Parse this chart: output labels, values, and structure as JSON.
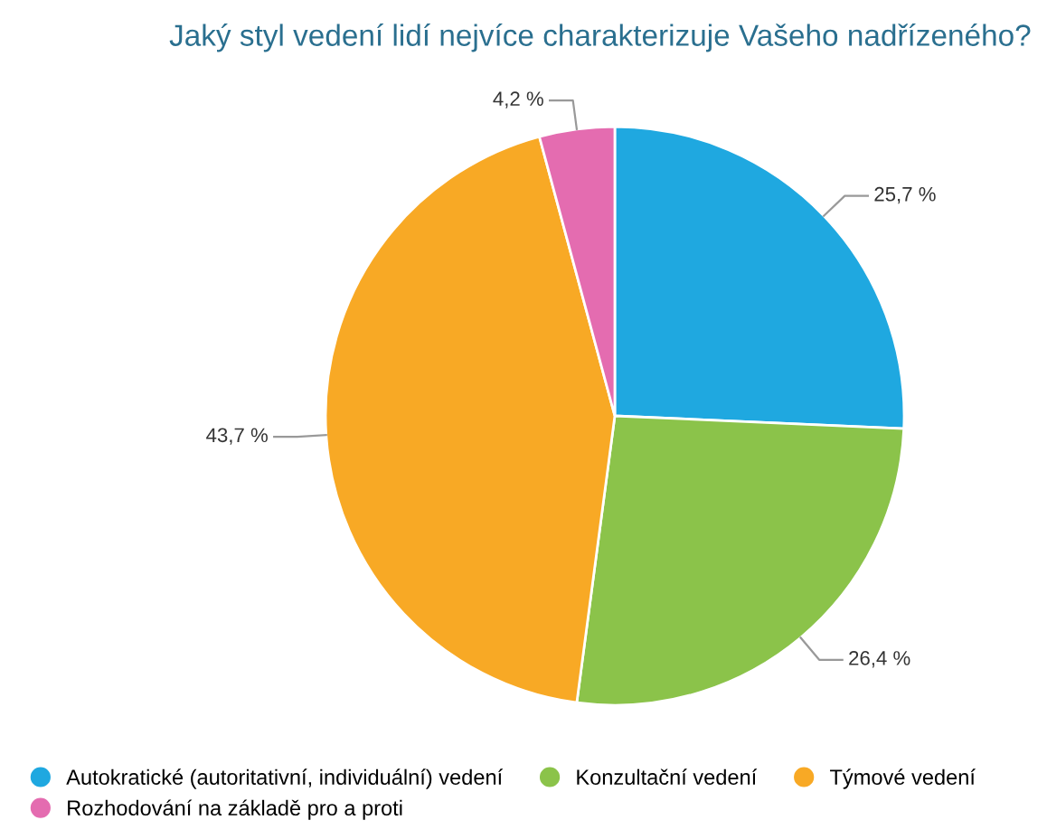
{
  "chart_data": {
    "type": "pie",
    "title": "Jaký styl vedení lidí nejvíce charakterizuje Vašeho nadřízeného?",
    "categories": [
      "Autokratické (autoritativní, individuální) vedení",
      "Konzultační vedení",
      "Týmové vedení",
      "Rozhodování na základě pro a proti"
    ],
    "values": [
      25.7,
      26.4,
      43.7,
      4.2
    ],
    "value_labels": [
      "25,7 %",
      "26,4 %",
      "43,7 %",
      "4,2 %"
    ],
    "colors": [
      "#1fa8e0",
      "#8bc34a",
      "#f8a925",
      "#e46cb0"
    ],
    "legend": "bottom"
  }
}
